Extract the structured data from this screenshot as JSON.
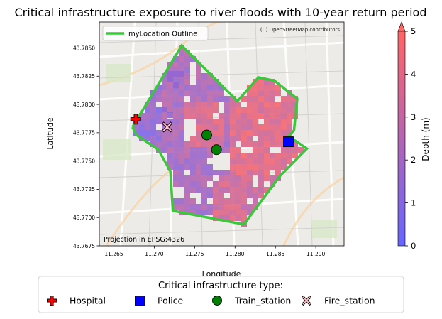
{
  "chart_data": {
    "type": "heatmap",
    "title": "Critical infrastructure exposure to river floods with 10-year return period",
    "xlabel": "Longitude",
    "ylabel": "Latitude",
    "xlim": [
      11.2632,
      11.2935
    ],
    "ylim": [
      43.7675,
      43.8712
    ],
    "x_ticks": [
      "11.265",
      "11.270",
      "11.275",
      "11.280",
      "11.285",
      "11.290"
    ],
    "x_tick_values": [
      11.265,
      11.27,
      11.275,
      11.28,
      11.285,
      11.29
    ],
    "y_ticks": [
      "43.7675",
      "43.7700",
      "43.7725",
      "43.7750",
      "43.7775",
      "43.7800",
      "43.7825",
      "43.7850"
    ],
    "y_tick_values": [
      43.7675,
      43.77,
      43.7725,
      43.775,
      43.7775,
      43.78,
      43.7825,
      43.785
    ],
    "attribution": "(C) OpenStreetMap contributors",
    "projection_note": "Projection in EPSG:4326",
    "outline": {
      "name": "myLocation Outline",
      "color": "#3cc63c",
      "points": [
        [
          11.2673,
          43.778
        ],
        [
          11.2734,
          43.7852
        ],
        [
          11.2803,
          43.7803
        ],
        [
          11.2829,
          43.7824
        ],
        [
          11.2849,
          43.7821
        ],
        [
          11.2877,
          43.7805
        ],
        [
          11.2873,
          43.7777
        ],
        [
          11.2866,
          43.7772
        ],
        [
          11.2889,
          43.7761
        ],
        [
          11.2856,
          43.7737
        ],
        [
          11.2811,
          43.7694
        ],
        [
          11.2723,
          43.7706
        ],
        [
          11.272,
          43.7741
        ],
        [
          11.2705,
          43.776
        ],
        [
          11.2678,
          43.7773
        ],
        [
          11.2673,
          43.778
        ]
      ]
    },
    "flood_depth": {
      "colorbar_label": "Depth (m)",
      "range": [
        0,
        5
      ],
      "ticks": [
        0,
        1,
        2,
        3,
        4,
        5
      ],
      "color_low": "#6666ff",
      "color_high": "#ff6666",
      "extend": "max"
    },
    "infrastructure": {
      "legend_title": "Critical infrastructure type:",
      "items": [
        {
          "type": "Hospital",
          "marker": "plus",
          "color": "#ff0000",
          "points": [
            [
              11.2677,
              43.7787
            ]
          ]
        },
        {
          "type": "Police",
          "marker": "square",
          "color": "#0000ff",
          "points": [
            [
              11.2866,
              43.7767
            ]
          ]
        },
        {
          "type": "Train_station",
          "marker": "circle",
          "color": "#008000",
          "points": [
            [
              11.2765,
              43.7773
            ],
            [
              11.2777,
              43.776
            ]
          ]
        },
        {
          "type": "Fire_station",
          "marker": "x",
          "color": "#ffc0cb",
          "points": [
            [
              11.2716,
              43.778
            ]
          ]
        }
      ]
    }
  }
}
